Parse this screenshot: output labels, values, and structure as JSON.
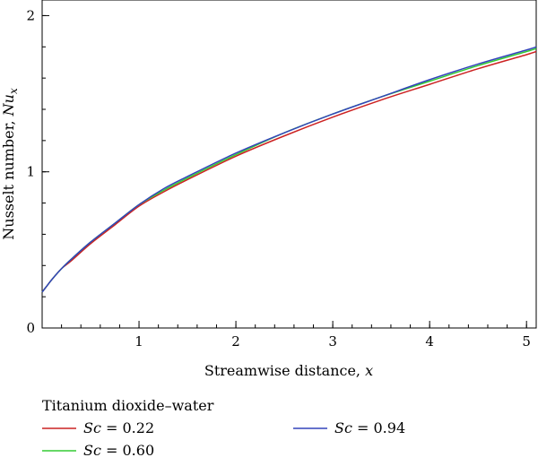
{
  "chart_data": {
    "type": "line",
    "xlabel": "Streamwise distance, x",
    "xlabel_text": "Streamwise distance, ",
    "xlabel_var": "x",
    "ylabel": "Nusselt number, Nu_x",
    "ylabel_text": "Nusselt number, ",
    "ylabel_var": "Nu",
    "ylabel_sub": "x",
    "xlim": [
      0.0,
      5.1
    ],
    "ylim": [
      0,
      2.1
    ],
    "xticks": [
      1,
      2,
      3,
      4,
      5
    ],
    "yticks": [
      0,
      1,
      2
    ],
    "x_minor_step": 0.2,
    "y_minor_step": 0.2,
    "grid": false,
    "legend": {
      "title": "Titanium dioxide–water",
      "placement": "below",
      "entries": [
        {
          "var": "Sc",
          "text": " = 0.22",
          "color": "#cc2222"
        },
        {
          "var": "Sc",
          "text": " = 0.60",
          "color": "#33cc33"
        },
        {
          "var": "Sc",
          "text": " = 0.94",
          "color": "#3344bb"
        }
      ]
    },
    "x": [
      0.0,
      0.05,
      0.1,
      0.2,
      0.3,
      0.5,
      0.75,
      1.0,
      1.25,
      1.5,
      2.0,
      2.5,
      3.0,
      3.5,
      4.0,
      4.5,
      5.0,
      5.1
    ],
    "series": [
      {
        "name": "Sc = 0.22",
        "color": "#cc2222",
        "values": [
          0.23,
          0.27,
          0.31,
          0.38,
          0.43,
          0.54,
          0.66,
          0.78,
          0.87,
          0.95,
          1.1,
          1.23,
          1.35,
          1.46,
          1.56,
          1.66,
          1.75,
          1.77
        ]
      },
      {
        "name": "Sc = 0.60",
        "color": "#33cc33",
        "values": [
          0.23,
          0.27,
          0.31,
          0.38,
          0.44,
          0.55,
          0.67,
          0.79,
          0.88,
          0.96,
          1.11,
          1.25,
          1.37,
          1.48,
          1.58,
          1.68,
          1.77,
          1.79
        ]
      },
      {
        "name": "Sc = 0.94",
        "color": "#3344bb",
        "values": [
          0.23,
          0.27,
          0.31,
          0.38,
          0.44,
          0.55,
          0.67,
          0.79,
          0.89,
          0.97,
          1.12,
          1.25,
          1.37,
          1.48,
          1.59,
          1.69,
          1.78,
          1.8
        ]
      }
    ]
  }
}
